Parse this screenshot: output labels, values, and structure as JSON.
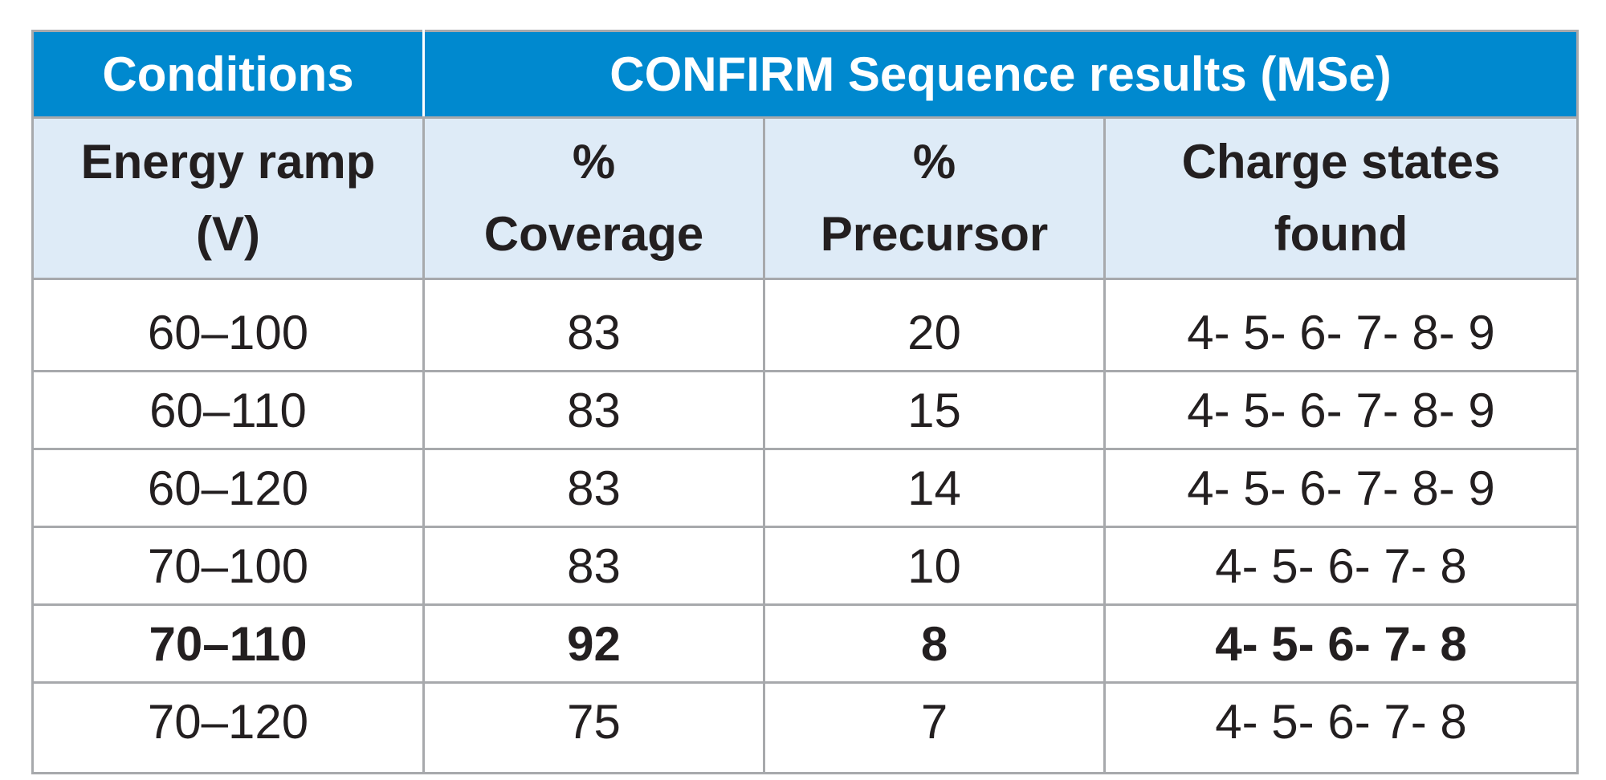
{
  "table": {
    "group_headers": [
      {
        "label": "Conditions"
      },
      {
        "label": "CONFIRM Sequence results (MSe)"
      }
    ],
    "column_headers": [
      {
        "line1": "Energy ramp",
        "line2": "(V)"
      },
      {
        "line1": "%",
        "line2": "Coverage"
      },
      {
        "line1": "%",
        "line2": "Precursor"
      },
      {
        "line1": "Charge states",
        "line2": "found"
      }
    ],
    "rows": [
      {
        "ramp": "60–100",
        "coverage": "83",
        "precursor": "20",
        "charge": "4- 5- 6- 7- 8- 9",
        "bold": false
      },
      {
        "ramp": "60–110",
        "coverage": "83",
        "precursor": "15",
        "charge": "4- 5- 6- 7- 8- 9",
        "bold": false
      },
      {
        "ramp": "60–120",
        "coverage": "83",
        "precursor": "14",
        "charge": "4- 5- 6- 7- 8- 9",
        "bold": false
      },
      {
        "ramp": "70–100",
        "coverage": "83",
        "precursor": "10",
        "charge": "4- 5- 6- 7- 8",
        "bold": false
      },
      {
        "ramp": "70–110",
        "coverage": "92",
        "precursor": "8",
        "charge": "4- 5- 6- 7- 8",
        "bold": true
      },
      {
        "ramp": "70–120",
        "coverage": "75",
        "precursor": "7",
        "charge": "4- 5- 6- 7- 8",
        "bold": false
      }
    ]
  },
  "colors": {
    "header_blue": "#0089cf",
    "subheader_light_blue": "#deebf7",
    "border_gray": "#a7a9ac",
    "text_dark": "#231f20"
  }
}
